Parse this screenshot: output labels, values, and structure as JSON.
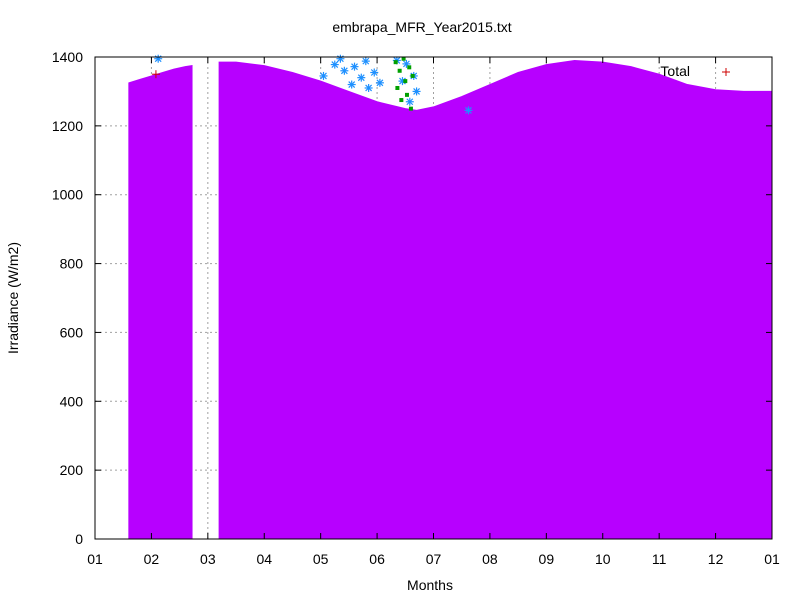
{
  "chart_data": {
    "type": "area",
    "title": "embrapa_MFR_Year2015.txt",
    "xlabel": "Months",
    "ylabel": "Irradiance (W/m2)",
    "xlim": [
      0,
      12
    ],
    "ylim": [
      0,
      1400
    ],
    "x_ticks": [
      "01",
      "02",
      "03",
      "04",
      "05",
      "06",
      "07",
      "08",
      "09",
      "10",
      "11",
      "12",
      "01"
    ],
    "y_ticks": [
      0,
      200,
      400,
      600,
      800,
      1000,
      1200,
      1400
    ],
    "grid": true,
    "legend_position": "top-right",
    "series": [
      {
        "name": "Total",
        "kind": "scatter",
        "marker": "plus",
        "color": "#cc0000",
        "x": [
          1.08
        ],
        "y": [
          1350
        ]
      },
      {
        "kind": "scatter",
        "marker": "asterisk",
        "color": "#1e90ff",
        "x": [
          1.12,
          4.05,
          4.25,
          4.35,
          4.42,
          4.55,
          4.6,
          4.72,
          4.8,
          4.85,
          4.95,
          5.05,
          5.35,
          5.45,
          5.52,
          5.58,
          5.65,
          5.7,
          6.62
        ],
        "y": [
          1395,
          1345,
          1378,
          1395,
          1360,
          1320,
          1372,
          1340,
          1388,
          1310,
          1355,
          1325,
          1390,
          1330,
          1380,
          1270,
          1345,
          1300,
          1245
        ]
      },
      {
        "kind": "scatter",
        "marker": "dot",
        "color": "#00a000",
        "x": [
          5.33,
          5.36,
          5.4,
          5.43,
          5.47,
          5.5,
          5.53,
          5.57,
          5.6,
          5.63
        ],
        "y": [
          1385,
          1310,
          1360,
          1275,
          1395,
          1330,
          1290,
          1370,
          1250,
          1345
        ]
      },
      {
        "kind": "area",
        "color": "#b700ff",
        "x": [
          0.6,
          0.8,
          1.0,
          1.2,
          1.4,
          1.6,
          1.72,
          2.2,
          2.5,
          3.0,
          3.5,
          4.0,
          4.5,
          5.0,
          5.5,
          5.7,
          6.0,
          6.5,
          7.0,
          7.5,
          8.0,
          8.5,
          9.0,
          9.5,
          10.0,
          10.5,
          11.0,
          11.5,
          12.0
        ],
        "y": [
          1325,
          1335,
          1345,
          1355,
          1365,
          1372,
          1375,
          1385,
          1385,
          1375,
          1355,
          1330,
          1300,
          1270,
          1250,
          1245,
          1255,
          1285,
          1320,
          1355,
          1378,
          1390,
          1385,
          1372,
          1350,
          1320,
          1305,
          1300,
          1300
        ],
        "gaps": [
          [
            1.72,
            2.12
          ]
        ]
      }
    ]
  }
}
